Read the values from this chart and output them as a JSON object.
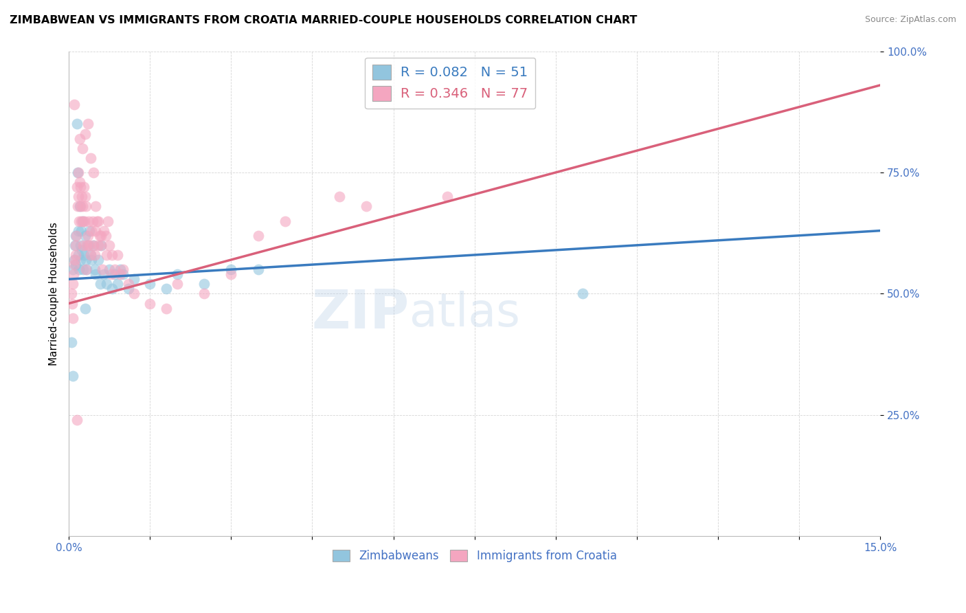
{
  "title": "ZIMBABWEAN VS IMMIGRANTS FROM CROATIA MARRIED-COUPLE HOUSEHOLDS CORRELATION CHART",
  "source": "Source: ZipAtlas.com",
  "ylabel": "Married-couple Households",
  "legend_blue_label": "Zimbabweans",
  "legend_pink_label": "Immigrants from Croatia",
  "R_blue": 0.082,
  "N_blue": 51,
  "R_pink": 0.346,
  "N_pink": 77,
  "blue_color": "#92c5de",
  "pink_color": "#f4a6c0",
  "blue_line_color": "#3a7bbf",
  "pink_line_color": "#d9607a",
  "xlim": [
    0.0,
    15.0
  ],
  "ylim": [
    0.0,
    100.0
  ],
  "blue_line_x0": 0.0,
  "blue_line_y0": 53.0,
  "blue_line_x1": 15.0,
  "blue_line_y1": 63.0,
  "pink_line_x0": 0.0,
  "pink_line_y0": 48.0,
  "pink_line_x1": 15.0,
  "pink_line_y1": 93.0,
  "blue_x": [
    0.05,
    0.07,
    0.08,
    0.1,
    0.11,
    0.12,
    0.13,
    0.15,
    0.16,
    0.17,
    0.18,
    0.19,
    0.2,
    0.21,
    0.22,
    0.23,
    0.24,
    0.25,
    0.26,
    0.28,
    0.3,
    0.32,
    0.33,
    0.35,
    0.38,
    0.4,
    0.42,
    0.45,
    0.48,
    0.5,
    0.55,
    0.58,
    0.6,
    0.65,
    0.7,
    0.75,
    0.8,
    0.85,
    0.9,
    0.95,
    1.0,
    1.1,
    1.2,
    1.5,
    1.8,
    2.0,
    2.5,
    3.0,
    3.5,
    9.5,
    0.3
  ],
  "blue_y": [
    40.0,
    33.0,
    55.0,
    57.0,
    60.0,
    56.0,
    62.0,
    85.0,
    75.0,
    58.0,
    63.0,
    55.0,
    68.0,
    60.0,
    57.0,
    63.0,
    59.0,
    65.0,
    55.0,
    58.0,
    62.0,
    57.0,
    55.0,
    60.0,
    63.0,
    58.0,
    57.0,
    60.0,
    55.0,
    54.0,
    57.0,
    52.0,
    60.0,
    54.0,
    52.0,
    55.0,
    51.0,
    54.0,
    52.0,
    55.0,
    54.0,
    51.0,
    53.0,
    52.0,
    51.0,
    54.0,
    52.0,
    55.0,
    55.0,
    50.0,
    47.0
  ],
  "pink_x": [
    0.05,
    0.06,
    0.07,
    0.08,
    0.09,
    0.1,
    0.11,
    0.12,
    0.13,
    0.14,
    0.15,
    0.16,
    0.17,
    0.18,
    0.19,
    0.2,
    0.21,
    0.22,
    0.23,
    0.24,
    0.25,
    0.26,
    0.27,
    0.28,
    0.29,
    0.3,
    0.31,
    0.32,
    0.33,
    0.35,
    0.37,
    0.38,
    0.4,
    0.42,
    0.44,
    0.45,
    0.48,
    0.5,
    0.52,
    0.55,
    0.57,
    0.6,
    0.62,
    0.65,
    0.68,
    0.7,
    0.72,
    0.75,
    0.78,
    0.8,
    0.85,
    0.9,
    0.95,
    1.0,
    1.1,
    1.2,
    1.5,
    1.8,
    2.0,
    2.5,
    3.0,
    3.5,
    4.0,
    5.0,
    7.0,
    0.25,
    0.2,
    0.3,
    0.35,
    0.4,
    0.45,
    0.5,
    0.55,
    0.6,
    0.15,
    5.5,
    0.1
  ],
  "pink_y": [
    50.0,
    48.0,
    52.0,
    45.0,
    54.0,
    56.0,
    57.0,
    58.0,
    60.0,
    62.0,
    72.0,
    68.0,
    75.0,
    70.0,
    65.0,
    73.0,
    68.0,
    72.0,
    65.0,
    70.0,
    68.0,
    65.0,
    60.0,
    72.0,
    65.0,
    70.0,
    68.0,
    55.0,
    60.0,
    62.0,
    65.0,
    60.0,
    58.0,
    63.0,
    65.0,
    60.0,
    58.0,
    63.0,
    65.0,
    60.0,
    62.0,
    60.0,
    55.0,
    63.0,
    62.0,
    58.0,
    65.0,
    60.0,
    54.0,
    58.0,
    55.0,
    58.0,
    54.0,
    55.0,
    52.0,
    50.0,
    48.0,
    47.0,
    52.0,
    50.0,
    54.0,
    62.0,
    65.0,
    70.0,
    70.0,
    80.0,
    82.0,
    83.0,
    85.0,
    78.0,
    75.0,
    68.0,
    65.0,
    62.0,
    24.0,
    68.0,
    89.0
  ]
}
